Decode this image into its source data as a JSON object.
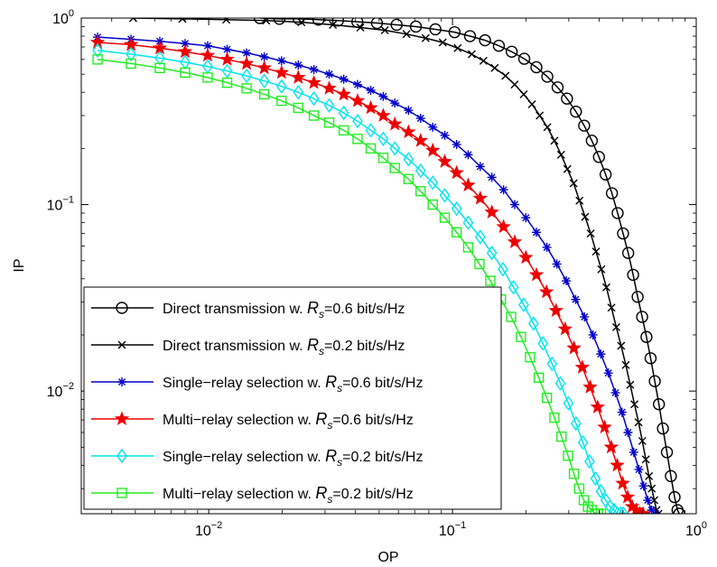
{
  "chart_data": {
    "type": "line",
    "xlabel": "OP",
    "ylabel": "IP",
    "xscale": "log",
    "yscale": "log",
    "xlim": [
      0.003,
      1
    ],
    "ylim": [
      0.0022,
      1
    ],
    "grid": false,
    "legend_placement": "bottom-left",
    "x_ticks": [
      {
        "value": 0.01,
        "base": "10",
        "exp": "−2"
      },
      {
        "value": 0.1,
        "base": "10",
        "exp": "−1"
      },
      {
        "value": 1,
        "base": "10",
        "exp": "0"
      }
    ],
    "y_ticks": [
      {
        "value": 0.01,
        "base": "10",
        "exp": "−2"
      },
      {
        "value": 0.1,
        "base": "10",
        "exp": "−1"
      },
      {
        "value": 1,
        "base": "10",
        "exp": "0"
      }
    ],
    "series": [
      {
        "name": "Direct transmission w. R_s=0.6 bit/s/Hz",
        "legend": {
          "pre": "Direct transmission w. ",
          "sym": "R",
          "sub": "s",
          "post": "=0.6 bit/s/Hz"
        },
        "color": "#000000",
        "marker": "circle",
        "x": [
          0.0162,
          0.0195,
          0.0234,
          0.0282,
          0.0339,
          0.0407,
          0.049,
          0.059,
          0.0708,
          0.0851,
          0.102,
          0.118,
          0.136,
          0.155,
          0.175,
          0.197,
          0.221,
          0.245,
          0.27,
          0.295,
          0.321,
          0.347,
          0.373,
          0.399,
          0.425,
          0.451,
          0.476,
          0.501,
          0.526,
          0.551,
          0.575,
          0.6,
          0.625,
          0.65,
          0.676,
          0.703,
          0.73,
          0.758,
          0.787,
          0.815,
          0.838,
          0.852
        ],
        "y": [
          1.0,
          0.99,
          0.99,
          0.98,
          0.97,
          0.955,
          0.94,
          0.92,
          0.9,
          0.87,
          0.84,
          0.8,
          0.76,
          0.71,
          0.66,
          0.605,
          0.545,
          0.485,
          0.425,
          0.37,
          0.315,
          0.265,
          0.22,
          0.18,
          0.145,
          0.115,
          0.09,
          0.07,
          0.055,
          0.042,
          0.032,
          0.025,
          0.0195,
          0.015,
          0.0113,
          0.0085,
          0.0063,
          0.0047,
          0.0035,
          0.0027,
          0.0023,
          0.0022
        ]
      },
      {
        "name": "Direct transmission w. R_s=0.2 bit/s/Hz",
        "legend": {
          "pre": "Direct transmission w. ",
          "sym": "R",
          "sub": "s",
          "post": "=0.2 bit/s/Hz"
        },
        "color": "#000000",
        "marker": "x",
        "x": [
          0.0049,
          0.0078,
          0.0118,
          0.0172,
          0.024,
          0.0323,
          0.0419,
          0.0528,
          0.0648,
          0.0776,
          0.0912,
          0.105,
          0.12,
          0.134,
          0.149,
          0.165,
          0.18,
          0.196,
          0.212,
          0.228,
          0.245,
          0.262,
          0.279,
          0.296,
          0.314,
          0.332,
          0.35,
          0.369,
          0.388,
          0.408,
          0.428,
          0.449,
          0.47,
          0.492,
          0.514,
          0.536,
          0.558,
          0.58,
          0.601,
          0.621,
          0.64,
          0.657,
          0.673,
          0.687,
          0.7
        ],
        "y": [
          1.0,
          0.99,
          0.98,
          0.97,
          0.95,
          0.92,
          0.89,
          0.86,
          0.82,
          0.78,
          0.74,
          0.69,
          0.64,
          0.59,
          0.54,
          0.49,
          0.44,
          0.39,
          0.345,
          0.3,
          0.26,
          0.22,
          0.185,
          0.155,
          0.13,
          0.105,
          0.086,
          0.07,
          0.056,
          0.045,
          0.036,
          0.028,
          0.022,
          0.0175,
          0.0138,
          0.0108,
          0.0085,
          0.0068,
          0.0054,
          0.0043,
          0.0035,
          0.003,
          0.0026,
          0.0023,
          0.0022
        ]
      },
      {
        "name": "Single−relay selection w. R_s=0.6 bit/s/Hz",
        "legend": {
          "pre": "Single−relay selection w. ",
          "sym": "R",
          "sub": "s",
          "post": "=0.6 bit/s/Hz"
        },
        "color": "#0000cc",
        "marker": "asterisk",
        "x": [
          0.0035,
          0.0048,
          0.0063,
          0.008,
          0.0099,
          0.0119,
          0.0143,
          0.0169,
          0.0199,
          0.0233,
          0.027,
          0.0312,
          0.0358,
          0.0408,
          0.0462,
          0.052,
          0.058,
          0.066,
          0.074,
          0.083,
          0.093,
          0.104,
          0.116,
          0.13,
          0.145,
          0.162,
          0.18,
          0.2,
          0.221,
          0.244,
          0.268,
          0.293,
          0.32,
          0.348,
          0.377,
          0.406,
          0.436,
          0.466,
          0.496,
          0.525,
          0.554,
          0.582,
          0.608,
          0.633,
          0.656,
          0.677
        ],
        "y": [
          0.79,
          0.77,
          0.75,
          0.73,
          0.71,
          0.68,
          0.65,
          0.62,
          0.59,
          0.56,
          0.53,
          0.5,
          0.47,
          0.44,
          0.41,
          0.38,
          0.35,
          0.32,
          0.29,
          0.26,
          0.235,
          0.21,
          0.185,
          0.16,
          0.14,
          0.12,
          0.1,
          0.085,
          0.071,
          0.059,
          0.048,
          0.039,
          0.031,
          0.025,
          0.02,
          0.0158,
          0.0125,
          0.0098,
          0.0077,
          0.006,
          0.0047,
          0.0038,
          0.0031,
          0.0026,
          0.0023,
          0.0022
        ]
      },
      {
        "name": "Multi−relay selection w. R_s=0.6 bit/s/Hz",
        "legend": {
          "pre": "Multi−relay selection w. ",
          "sym": "R",
          "sub": "s",
          "post": "=0.6 bit/s/Hz"
        },
        "color": "#ee0000",
        "marker": "star",
        "x": [
          0.0035,
          0.0048,
          0.0063,
          0.008,
          0.0099,
          0.0119,
          0.0143,
          0.0169,
          0.0199,
          0.0233,
          0.027,
          0.0312,
          0.0358,
          0.0408,
          0.0462,
          0.052,
          0.058,
          0.066,
          0.074,
          0.083,
          0.093,
          0.104,
          0.116,
          0.13,
          0.145,
          0.162,
          0.18,
          0.2,
          0.221,
          0.243,
          0.266,
          0.29,
          0.315,
          0.341,
          0.367,
          0.394,
          0.421,
          0.448,
          0.474,
          0.499,
          0.523,
          0.546,
          0.567,
          0.587,
          0.605
        ],
        "y": [
          0.74,
          0.72,
          0.69,
          0.66,
          0.63,
          0.6,
          0.57,
          0.54,
          0.51,
          0.48,
          0.45,
          0.42,
          0.39,
          0.36,
          0.33,
          0.3,
          0.27,
          0.245,
          0.22,
          0.195,
          0.17,
          0.148,
          0.127,
          0.108,
          0.091,
          0.076,
          0.063,
          0.052,
          0.042,
          0.034,
          0.027,
          0.0215,
          0.017,
          0.0134,
          0.0105,
          0.0082,
          0.0064,
          0.005,
          0.004,
          0.0032,
          0.0027,
          0.0024,
          0.0023,
          0.0022,
          0.0022
        ]
      },
      {
        "name": "Single−relay selection w. R_s=0.2 bit/s/Hz",
        "legend": {
          "pre": "Single−relay selection w. ",
          "sym": "R",
          "sub": "s",
          "post": "=0.2 bit/s/Hz"
        },
        "color": "#00e5ee",
        "marker": "diamond",
        "x": [
          0.0035,
          0.0048,
          0.0063,
          0.008,
          0.0099,
          0.0119,
          0.0143,
          0.0169,
          0.0199,
          0.0233,
          0.027,
          0.0312,
          0.0358,
          0.0408,
          0.0462,
          0.052,
          0.058,
          0.066,
          0.074,
          0.083,
          0.093,
          0.104,
          0.116,
          0.13,
          0.145,
          0.161,
          0.178,
          0.196,
          0.215,
          0.235,
          0.256,
          0.277,
          0.299,
          0.321,
          0.343,
          0.365,
          0.386,
          0.406,
          0.425,
          0.443,
          0.46,
          0.475,
          0.489,
          0.502
        ],
        "y": [
          0.67,
          0.64,
          0.61,
          0.58,
          0.55,
          0.52,
          0.49,
          0.46,
          0.43,
          0.4,
          0.37,
          0.34,
          0.31,
          0.28,
          0.25,
          0.225,
          0.2,
          0.175,
          0.152,
          0.131,
          0.112,
          0.095,
          0.08,
          0.067,
          0.055,
          0.045,
          0.036,
          0.029,
          0.023,
          0.018,
          0.014,
          0.011,
          0.0086,
          0.0067,
          0.0053,
          0.0042,
          0.0034,
          0.0029,
          0.0026,
          0.0024,
          0.0023,
          0.0022,
          0.0022,
          0.0022
        ]
      },
      {
        "name": "Multi−relay selection w. R_s=0.2 bit/s/Hz",
        "legend": {
          "pre": "Multi−relay selection w. ",
          "sym": "R",
          "sub": "s",
          "post": "=0.2 bit/s/Hz"
        },
        "color": "#22ee22",
        "marker": "square",
        "x": [
          0.0035,
          0.0048,
          0.0063,
          0.008,
          0.0099,
          0.0119,
          0.0143,
          0.0169,
          0.0199,
          0.0233,
          0.027,
          0.0312,
          0.0358,
          0.0408,
          0.0462,
          0.052,
          0.058,
          0.066,
          0.074,
          0.083,
          0.093,
          0.104,
          0.116,
          0.129,
          0.143,
          0.158,
          0.174,
          0.191,
          0.208,
          0.226,
          0.244,
          0.262,
          0.28,
          0.298,
          0.315,
          0.331,
          0.346,
          0.36,
          0.373,
          0.385,
          0.396,
          0.407
        ],
        "y": [
          0.6,
          0.57,
          0.54,
          0.51,
          0.48,
          0.45,
          0.42,
          0.39,
          0.36,
          0.33,
          0.3,
          0.275,
          0.25,
          0.225,
          0.2,
          0.178,
          0.157,
          0.137,
          0.118,
          0.1,
          0.085,
          0.071,
          0.059,
          0.048,
          0.039,
          0.031,
          0.025,
          0.0195,
          0.0152,
          0.0118,
          0.0092,
          0.0072,
          0.0057,
          0.0045,
          0.0036,
          0.003,
          0.0026,
          0.0024,
          0.0023,
          0.0022,
          0.0022,
          0.0022
        ]
      }
    ]
  }
}
